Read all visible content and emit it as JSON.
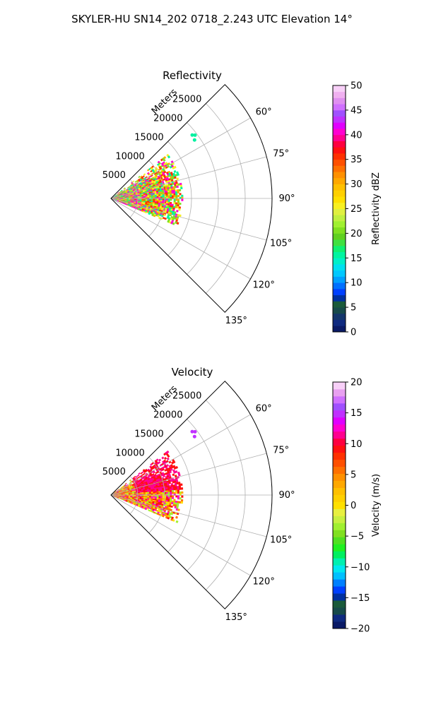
{
  "title": "SKYLER-HU  SN14_202  0718_2.243 UTC Elevation 14°",
  "chart_data": [
    {
      "type": "heatmap",
      "projection": "polar-sector",
      "title": "Reflectivity",
      "range_label": "Meters",
      "range_ticks": [
        5000,
        10000,
        15000,
        20000,
        25000
      ],
      "range_tick_labels": [
        "5000",
        "10000",
        "15000",
        "20000",
        "25000"
      ],
      "rmax": 30000,
      "azimuth_range_deg": [
        45,
        135
      ],
      "azimuth_ticks_deg": [
        60,
        75,
        90,
        105,
        120,
        135
      ],
      "azimuth_tick_labels": [
        "60°",
        "75°",
        "90°",
        "105°",
        "120°",
        "135°"
      ],
      "grid": true,
      "colorbar": {
        "label": "Reflectivity dBZ",
        "min": 0,
        "max": 50,
        "ticks": [
          0,
          5,
          10,
          15,
          20,
          25,
          30,
          35,
          40,
          45,
          50
        ],
        "tick_labels": [
          "0",
          "5",
          "10",
          "15",
          "20",
          "25",
          "30",
          "35",
          "40",
          "45",
          "50"
        ],
        "colors": [
          "#0a1a66",
          "#0f2a80",
          "#14366b",
          "#174a4a",
          "#1a5a3a",
          "#0030a0",
          "#0040ff",
          "#0070ff",
          "#00a0ff",
          "#00c8ff",
          "#00e0f0",
          "#00f0c8",
          "#00f5a0",
          "#10f070",
          "#40e040",
          "#60d020",
          "#80e020",
          "#a0f030",
          "#c0f040",
          "#e0f040",
          "#f8f020",
          "#ffe000",
          "#ffd000",
          "#ffc000",
          "#ffa800",
          "#ff9000",
          "#ff7000",
          "#ff5000",
          "#ff3000",
          "#ff1010",
          "#ff0040",
          "#ff0090",
          "#ff00d0",
          "#e000ff",
          "#c030ff",
          "#a050ff",
          "#d070ff",
          "#e090f0",
          "#f0b0f0",
          "#f8d0f8"
        ]
      },
      "field": {
        "quantity": "reflectivity_dbz",
        "extent_azimuth_deg": [
          52,
          112
        ],
        "max_range_m": 12500,
        "description_values": [
          15,
          20,
          25,
          30,
          35,
          40
        ]
      }
    },
    {
      "type": "heatmap",
      "projection": "polar-sector",
      "title": "Velocity",
      "range_label": "Meters",
      "range_ticks": [
        5000,
        10000,
        15000,
        20000,
        25000
      ],
      "range_tick_labels": [
        "5000",
        "10000",
        "15000",
        "20000",
        "25000"
      ],
      "rmax": 30000,
      "azimuth_range_deg": [
        45,
        135
      ],
      "azimuth_ticks_deg": [
        60,
        75,
        90,
        105,
        120,
        135
      ],
      "azimuth_tick_labels": [
        "60°",
        "75°",
        "90°",
        "105°",
        "120°",
        "135°"
      ],
      "grid": true,
      "colorbar": {
        "label": "Velocity (m/s)",
        "min": -20,
        "max": 20,
        "ticks": [
          -20,
          -15,
          -10,
          -5,
          0,
          5,
          10,
          15,
          20
        ],
        "tick_labels": [
          "−20",
          "−15",
          "−10",
          "−5",
          "0",
          "5",
          "10",
          "15",
          "20"
        ],
        "colors": [
          "#0a1a66",
          "#0f2a80",
          "#174a4a",
          "#1a5a3a",
          "#0030a0",
          "#0040ff",
          "#0080ff",
          "#00c0ff",
          "#00e8f0",
          "#00f0b0",
          "#00f060",
          "#20f020",
          "#50e020",
          "#80e020",
          "#a0f030",
          "#c8f040",
          "#e8f040",
          "#ffe000",
          "#ffd000",
          "#ffc000",
          "#ffa800",
          "#ff9000",
          "#ff7000",
          "#ff5000",
          "#ff3000",
          "#ff1010",
          "#ff0040",
          "#ff0090",
          "#ff00d0",
          "#e000ff",
          "#c030ff",
          "#a050ff",
          "#d070ff",
          "#e8a0f0",
          "#f8d0f8"
        ]
      },
      "field": {
        "quantity": "radial_velocity_ms",
        "extent_azimuth_deg": [
          52,
          112
        ],
        "max_range_m": 12500,
        "description_values": [
          -3,
          0,
          3,
          6,
          9,
          12
        ]
      }
    }
  ]
}
